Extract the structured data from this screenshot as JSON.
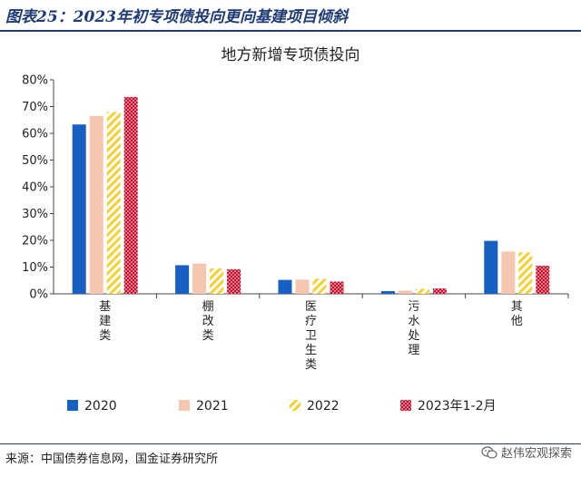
{
  "header": {
    "figure_title": "图表25：2023年初专项债投向更向基建项目倾斜"
  },
  "footer": {
    "source": "来源：中国债券信息网，国金证券研究所",
    "watermark": "赵伟宏观探索",
    "watermark_icon": "wechat-icon"
  },
  "chart_data": {
    "type": "bar",
    "title": "地方新增专项债投向",
    "categories": [
      "基建类",
      "棚改类",
      "医疗卫生类",
      "污水处理",
      "其他"
    ],
    "series": [
      {
        "name": "2020",
        "values": [
          63.3,
          10.7,
          5.2,
          1.0,
          19.8
        ],
        "color": "#1560c2",
        "pattern": "solid"
      },
      {
        "name": "2021",
        "values": [
          66.5,
          11.3,
          5.3,
          1.2,
          15.8
        ],
        "color": "#f5c6b0",
        "pattern": "solid"
      },
      {
        "name": "2022",
        "values": [
          68.0,
          9.5,
          5.6,
          1.9,
          15.5
        ],
        "color": "#f6d02f",
        "pattern": "diagonal"
      },
      {
        "name": "2023年1-2月",
        "values": [
          73.6,
          9.2,
          4.6,
          2.0,
          10.5
        ],
        "color": "#c8102e",
        "pattern": "dots"
      }
    ],
    "y_ticks": [
      "0%",
      "10%",
      "20%",
      "30%",
      "40%",
      "50%",
      "60%",
      "70%",
      "80%"
    ],
    "ylim": [
      0,
      80
    ],
    "grid": false,
    "legend_position": "bottom"
  }
}
